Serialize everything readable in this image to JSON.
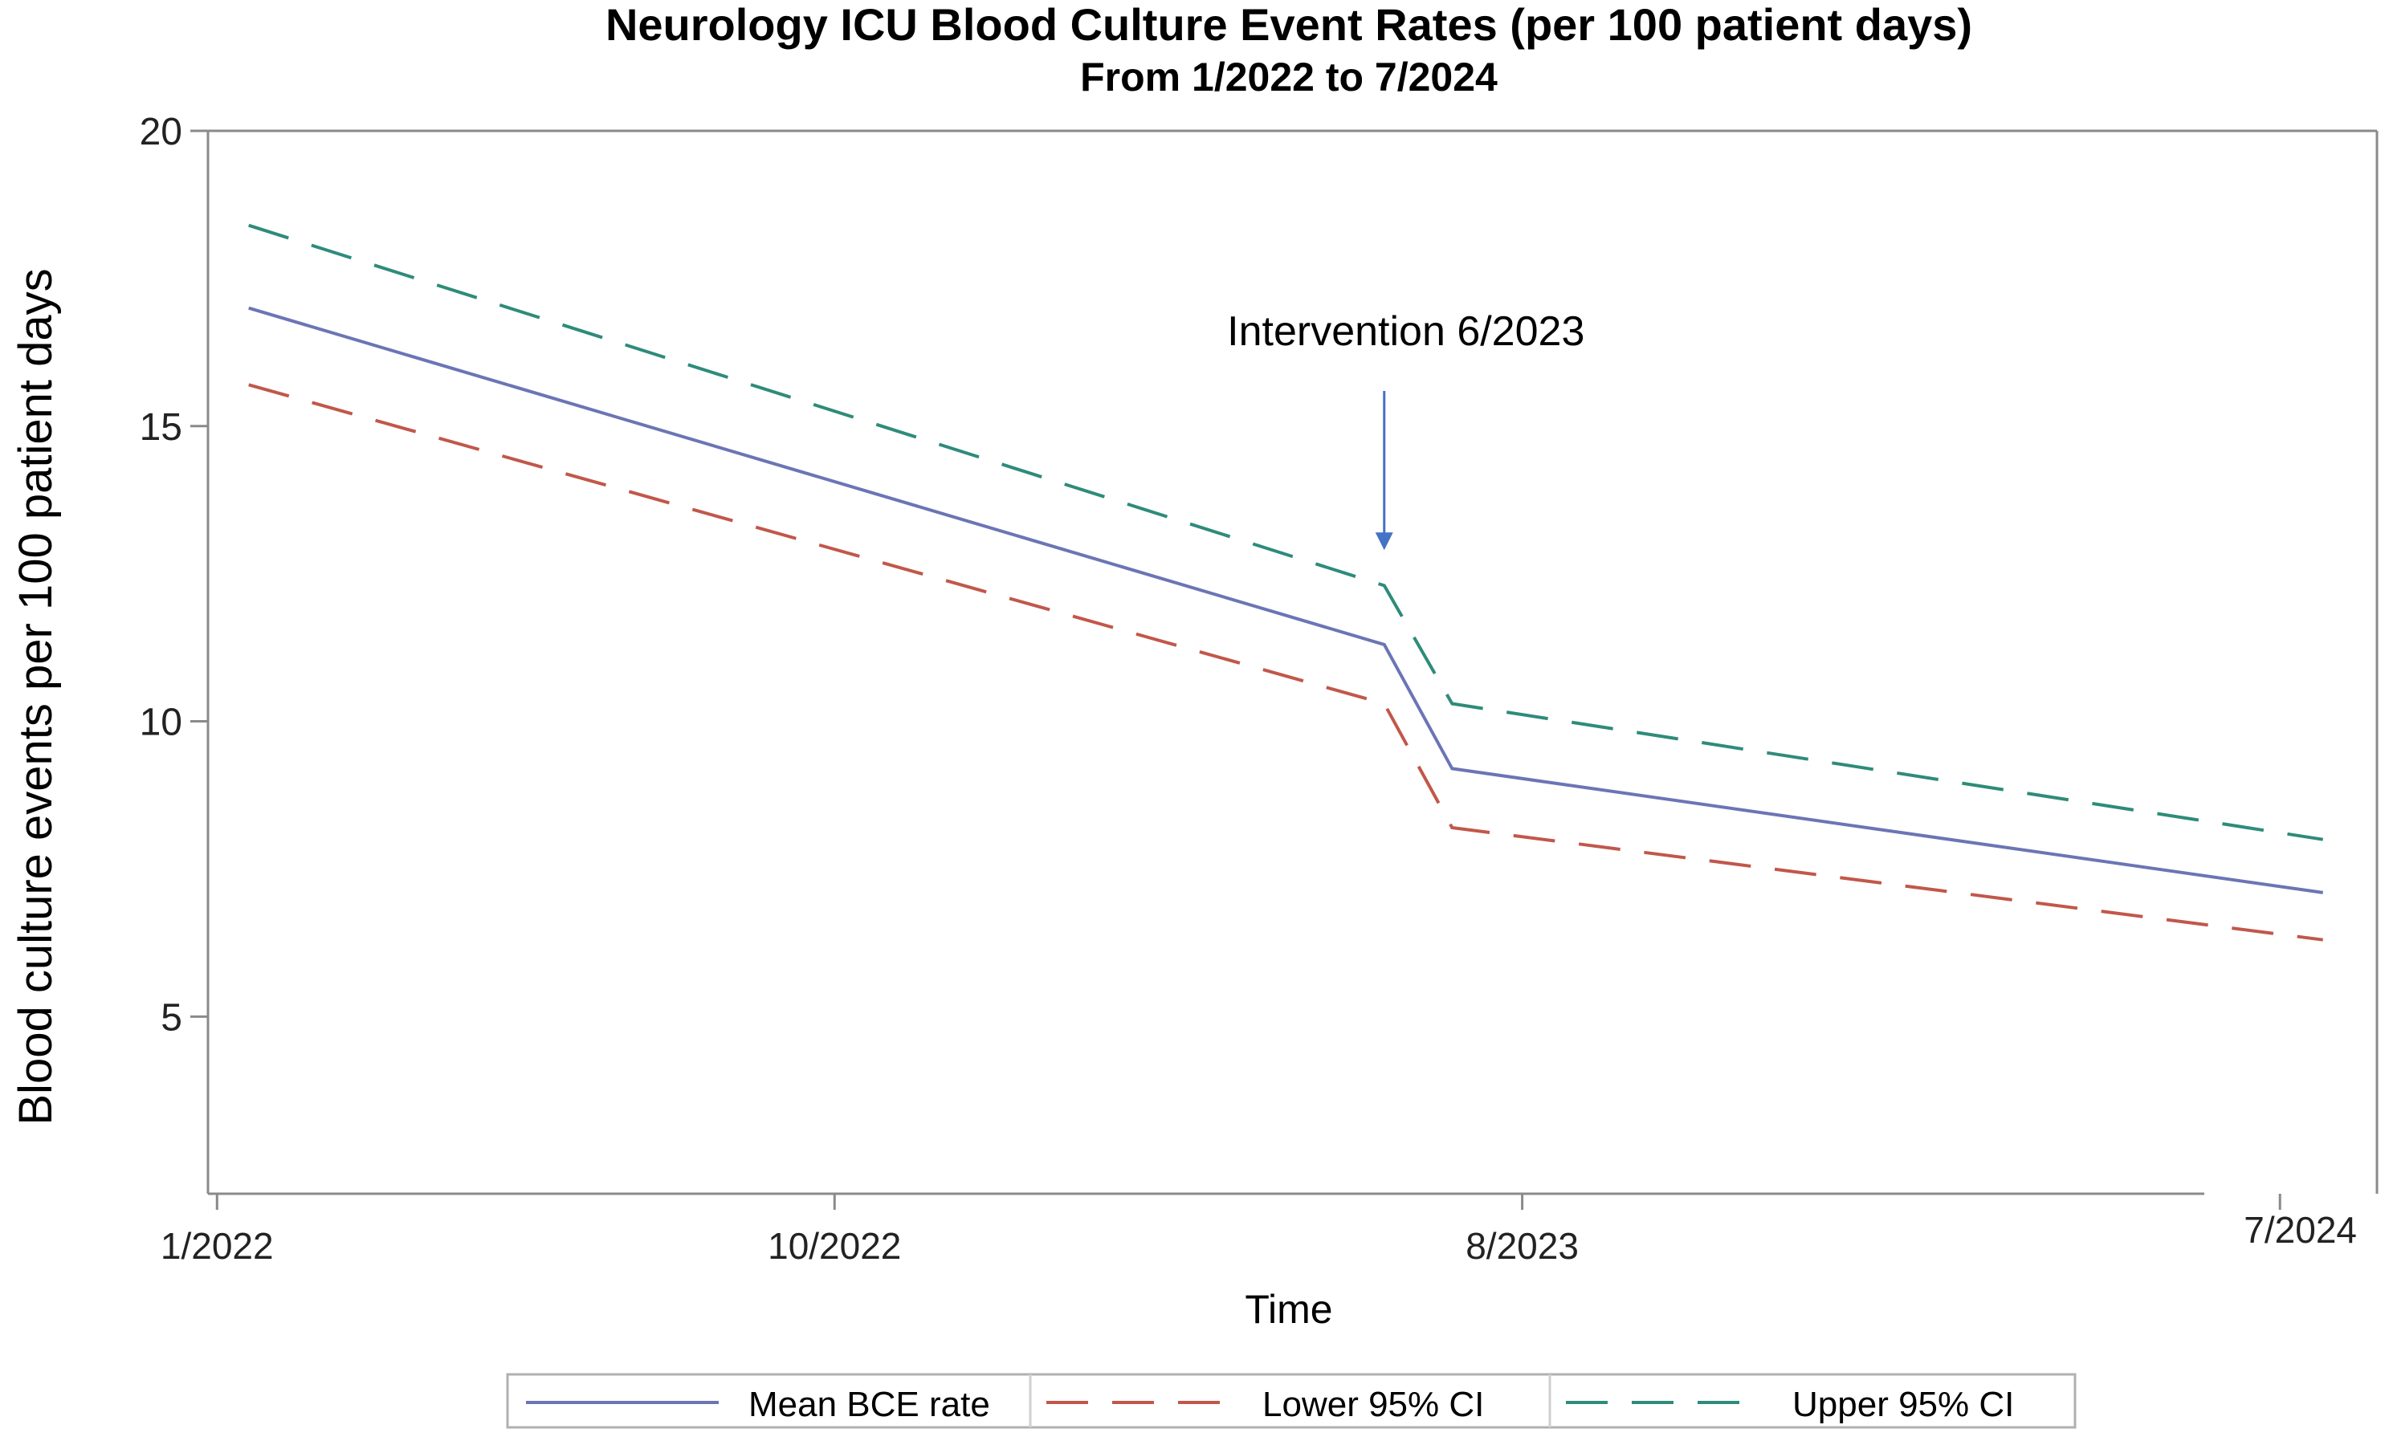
{
  "chart_data": {
    "type": "line",
    "title": "Neurology ICU Blood Culture Event Rates (per 100 patient days)",
    "subtitle": "From 1/2022 to 7/2024",
    "xlabel": "Time",
    "ylabel": "Blood culture events per 100 patient days",
    "xlim": [
      "2021-12-28",
      "2024-08-04"
    ],
    "ylim": [
      2,
      20
    ],
    "x_ticks": [
      {
        "label": "1/2022",
        "date": "2022-01-01"
      },
      {
        "label": "10/2022",
        "date": "2022-10-01"
      },
      {
        "label": "8/2023",
        "date": "2023-08-01"
      },
      {
        "label": "7/2024",
        "date": "2024-07-01"
      }
    ],
    "y_ticks": [
      5,
      10,
      15,
      20
    ],
    "grid": false,
    "legend_position": "bottom",
    "annotation": {
      "text": "Intervention 6/2023",
      "date": "2023-06-01",
      "arrow_tip_y": 12.9
    },
    "series": [
      {
        "name": "Mean BCE rate",
        "color": "#6b75b5",
        "dash": "solid",
        "points": [
          {
            "x": "2022-01-15",
            "y": 17.0
          },
          {
            "x": "2023-06-01",
            "y": 11.3
          },
          {
            "x": "2023-07-01",
            "y": 9.2
          },
          {
            "x": "2024-07-20",
            "y": 7.1
          }
        ]
      },
      {
        "name": "Lower 95% CI",
        "color": "#c1574a",
        "dash": "dashed",
        "points": [
          {
            "x": "2022-01-15",
            "y": 15.7
          },
          {
            "x": "2023-06-01",
            "y": 10.3
          },
          {
            "x": "2023-07-01",
            "y": 8.2
          },
          {
            "x": "2024-07-20",
            "y": 6.3
          }
        ]
      },
      {
        "name": "Upper 95% CI",
        "color": "#2e8b7a",
        "dash": "dashed",
        "points": [
          {
            "x": "2022-01-15",
            "y": 18.4
          },
          {
            "x": "2023-06-01",
            "y": 12.3
          },
          {
            "x": "2023-07-01",
            "y": 10.3
          },
          {
            "x": "2024-07-20",
            "y": 8.0
          }
        ]
      }
    ]
  }
}
